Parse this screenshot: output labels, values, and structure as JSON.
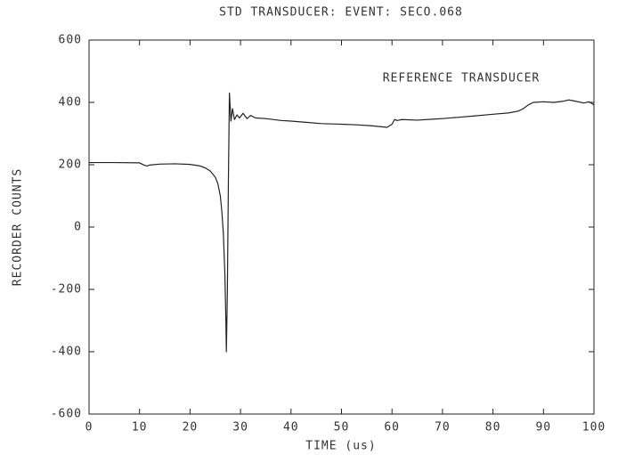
{
  "chart_data": {
    "type": "line",
    "title": "STD TRANSDUCER: EVENT: SECO.068",
    "annotation": "REFERENCE TRANSDUCER",
    "x_label": "TIME (us)",
    "y_label": "RECORDER COUNTS",
    "xlim": [
      0,
      100
    ],
    "xticks": [
      0,
      10,
      20,
      30,
      40,
      50,
      60,
      70,
      80,
      90,
      100
    ],
    "ylim": [
      -600,
      600
    ],
    "yticks": [
      -600,
      -400,
      -200,
      0,
      200,
      400,
      600
    ],
    "series": [
      {
        "name": "REFERENCE TRANSDUCER",
        "color": "#222222",
        "x": [
          0,
          5,
          10,
          11,
          11.5,
          12,
          14,
          17,
          20,
          22,
          23,
          24,
          25,
          25.5,
          26,
          26.3,
          26.6,
          26.9,
          27.1,
          27.2,
          27.4,
          27.6,
          27.8,
          28.1,
          28.4,
          28.8,
          29.3,
          29.8,
          30.5,
          31.3,
          32,
          33,
          35,
          38,
          40,
          43,
          46,
          50,
          53,
          56,
          59,
          60,
          60.5,
          61,
          62,
          65,
          68,
          70,
          73,
          76,
          80,
          83,
          85,
          86,
          87,
          88,
          90,
          92,
          94,
          95,
          96,
          98,
          99,
          100
        ],
        "values": [
          207,
          207,
          206,
          198,
          196,
          199,
          202,
          203,
          201,
          196,
          190,
          180,
          160,
          140,
          100,
          50,
          -20,
          -150,
          -300,
          -400,
          -200,
          150,
          430,
          340,
          380,
          345,
          360,
          350,
          365,
          348,
          358,
          350,
          348,
          342,
          340,
          336,
          332,
          330,
          328,
          325,
          320,
          330,
          345,
          342,
          345,
          343,
          346,
          348,
          352,
          356,
          362,
          366,
          372,
          380,
          392,
          400,
          402,
          400,
          404,
          408,
          405,
          398,
          402,
          392
        ]
      }
    ]
  }
}
